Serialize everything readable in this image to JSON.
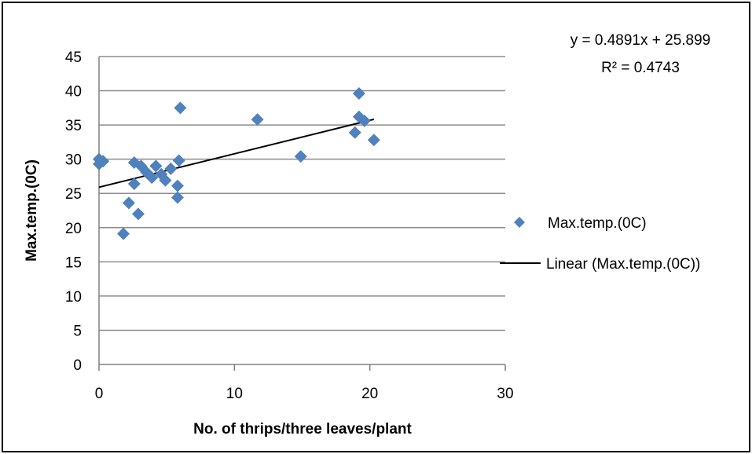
{
  "chart_data": {
    "type": "scatter",
    "title": "",
    "xlabel": "No. of thrips/three leaves/plant",
    "ylabel": "Max.temp.(0C)",
    "xlim": [
      0,
      30
    ],
    "ylim": [
      0,
      45
    ],
    "x_ticks": [
      "0",
      "10",
      "20",
      "30"
    ],
    "y_ticks": [
      "0",
      "5",
      "10",
      "15",
      "20",
      "25",
      "30",
      "35",
      "40",
      "45"
    ],
    "grid": "horizontal",
    "legend_position": "right",
    "series": [
      {
        "name": "Max.temp.(0C)",
        "color": "#4f81bd",
        "marker": "diamond",
        "points": [
          [
            0.0,
            30.0
          ],
          [
            0.0,
            29.3
          ],
          [
            0.3,
            29.7
          ],
          [
            1.8,
            19.1
          ],
          [
            2.2,
            23.6
          ],
          [
            2.6,
            26.4
          ],
          [
            2.6,
            29.5
          ],
          [
            2.9,
            22.0
          ],
          [
            3.1,
            29.0
          ],
          [
            3.5,
            28.1
          ],
          [
            3.9,
            27.3
          ],
          [
            4.2,
            29.0
          ],
          [
            4.6,
            27.8
          ],
          [
            4.9,
            26.9
          ],
          [
            5.3,
            28.6
          ],
          [
            5.8,
            24.4
          ],
          [
            5.8,
            26.1
          ],
          [
            5.9,
            29.8
          ],
          [
            6.0,
            37.5
          ],
          [
            11.7,
            35.8
          ],
          [
            14.9,
            30.4
          ],
          [
            18.9,
            33.9
          ],
          [
            19.2,
            39.6
          ],
          [
            19.2,
            36.2
          ],
          [
            19.6,
            35.6
          ],
          [
            20.3,
            32.8
          ]
        ]
      }
    ],
    "trendline": {
      "name": "Linear (Max.temp.(0C))",
      "color": "#000000",
      "slope": 0.4891,
      "intercept": 25.899,
      "x_range": [
        0,
        20.3
      ],
      "equation": "y = 0.4891x + 25.899",
      "r_squared": "R² = 0.4743"
    }
  }
}
